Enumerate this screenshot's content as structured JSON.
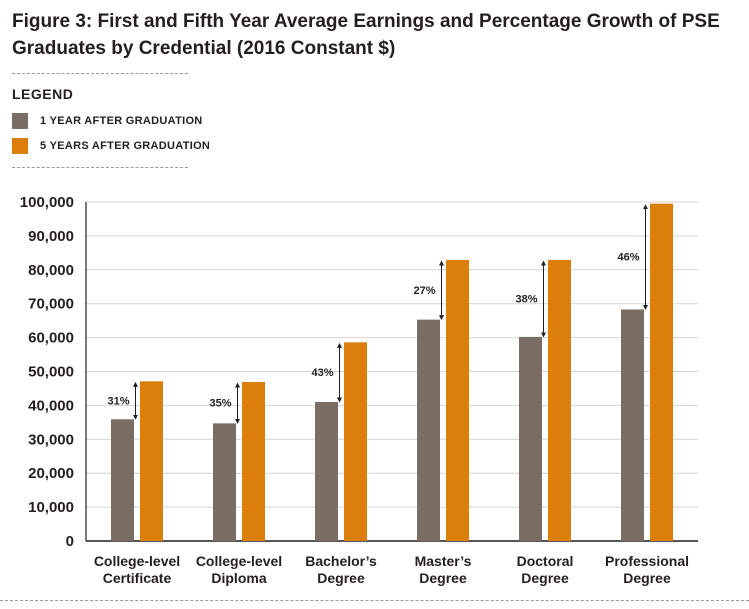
{
  "title": "Figure 3: First and Fifth Year Average Earnings and Percentage Growth of PSE Graduates by Credential (2016 Constant $)",
  "legend": {
    "heading": "LEGEND",
    "items": [
      {
        "label": "1 YEAR AFTER GRADUATION",
        "color": "#7a6e64"
      },
      {
        "label": "5 YEARS AFTER GRADUATION",
        "color": "#dc7e0a"
      }
    ]
  },
  "chart_data": {
    "type": "bar",
    "categories": [
      [
        "College-level",
        "Certificate"
      ],
      [
        "College-level",
        "Diploma"
      ],
      [
        "Bachelor’s",
        "Degree"
      ],
      [
        "Master’s",
        "Degree"
      ],
      [
        "Doctoral",
        "Degree"
      ],
      [
        "Professional",
        "Degree"
      ]
    ],
    "series": [
      {
        "name": "1 YEAR AFTER GRADUATION",
        "color": "#7a6e64",
        "values": [
          35900,
          34700,
          41000,
          65300,
          60200,
          68300
        ]
      },
      {
        "name": "5 YEARS AFTER GRADUATION",
        "color": "#dc7e0a",
        "values": [
          47100,
          46900,
          58600,
          82900,
          82900,
          99500
        ]
      }
    ],
    "growth_labels": [
      "31%",
      "35%",
      "43%",
      "27%",
      "38%",
      "46%"
    ],
    "ylim": [
      0,
      100000
    ],
    "yticks": [
      0,
      10000,
      20000,
      30000,
      40000,
      50000,
      60000,
      70000,
      80000,
      90000,
      100000
    ],
    "ytick_labels": [
      "0",
      "10,000",
      "20,000",
      "30,000",
      "40,000",
      "50,000",
      "60,000",
      "70,000",
      "80,000",
      "90,000",
      "100,000"
    ],
    "grid": true,
    "legend_position": "top-left"
  }
}
